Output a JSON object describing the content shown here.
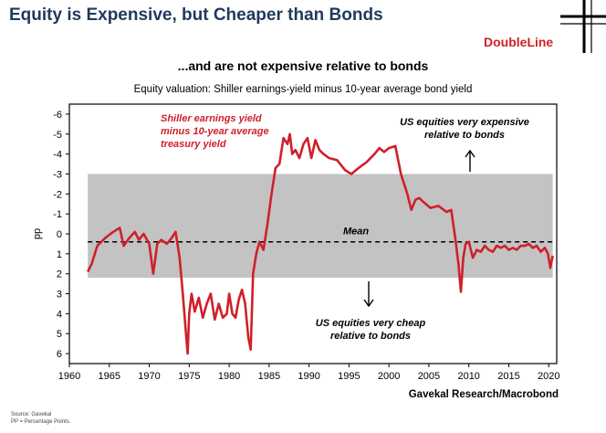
{
  "header": {
    "title": "Equity is Expensive, but Cheaper than Bonds",
    "logo": "DoubleLine"
  },
  "colors": {
    "series": "#d0202a",
    "band": "#c3c3c3",
    "title": "#1f3a5c",
    "logo": "#d0202a"
  },
  "footer": {
    "credit": "Gavekal Research/Macrobond",
    "source": "Source: Gavekal",
    "pp_note": "PP = Percentage Points."
  },
  "chart_data": {
    "type": "line",
    "title": "...and are not expensive relative to bonds",
    "subtitle": "Equity valuation: Shiller earnings-yield minus 10-year average bond yield",
    "ylabel": "pp",
    "xlabel": "",
    "xlim": [
      1960,
      2021
    ],
    "ylim": [
      6.5,
      -6.5
    ],
    "y_inverted": true,
    "xticks": [
      "1960",
      "1965",
      "1970",
      "1975",
      "1980",
      "1985",
      "1990",
      "1995",
      "2000",
      "2005",
      "2010",
      "2015",
      "2020"
    ],
    "yticks": [
      "-6",
      "-5",
      "-4",
      "-3",
      "-2",
      "-1",
      "0",
      "1",
      "2",
      "3",
      "4",
      "5",
      "6"
    ],
    "grid": false,
    "band": {
      "from": -3,
      "to": 2.2
    },
    "mean": 0.4,
    "mean_label": "Mean",
    "annotations": {
      "series_label": [
        "Shiller earnings yield",
        "minus 10-year average",
        "treasury yield"
      ],
      "expensive": [
        "US equities very expensive",
        "relative to bonds"
      ],
      "cheap": [
        "US equities very cheap",
        "relative to bonds"
      ]
    },
    "series": [
      {
        "name": "Shiller earnings yield minus 10-year average treasury yield",
        "x": [
          1962.3,
          1962.8,
          1963.5,
          1964.5,
          1965.5,
          1966.3,
          1966.8,
          1967.5,
          1968.2,
          1968.7,
          1969.3,
          1970.0,
          1970.5,
          1971.0,
          1971.5,
          1972.2,
          1972.8,
          1973.3,
          1973.8,
          1974.2,
          1974.5,
          1974.8,
          1975.0,
          1975.3,
          1975.7,
          1976.2,
          1976.7,
          1977.2,
          1977.7,
          1978.2,
          1978.7,
          1979.2,
          1979.7,
          1980.0,
          1980.4,
          1980.8,
          1981.2,
          1981.6,
          1982.0,
          1982.4,
          1982.7,
          1983.0,
          1983.4,
          1983.8,
          1984.3,
          1984.8,
          1985.3,
          1985.8,
          1986.3,
          1986.8,
          1987.3,
          1987.6,
          1987.9,
          1988.3,
          1988.8,
          1989.3,
          1989.8,
          1990.3,
          1990.8,
          1991.3,
          1991.8,
          1992.5,
          1993.5,
          1994.5,
          1995.3,
          1996.2,
          1997.2,
          1998.2,
          1998.8,
          1999.4,
          2000.0,
          2000.8,
          2001.5,
          2002.3,
          2002.8,
          2003.3,
          2003.8,
          2004.3,
          2005.2,
          2006.2,
          2007.2,
          2007.8,
          2008.3,
          2008.7,
          2009.0,
          2009.3,
          2009.6,
          2010.0,
          2010.5,
          2011.0,
          2011.5,
          2012.0,
          2012.5,
          2013.0,
          2013.5,
          2014.0,
          2014.5,
          2015.0,
          2015.5,
          2016.0,
          2016.5,
          2017.0,
          2017.5,
          2018.0,
          2018.5,
          2019.0,
          2019.5,
          2019.9,
          2020.2,
          2020.5
        ],
        "values": [
          1.9,
          1.5,
          0.6,
          0.2,
          -0.1,
          -0.3,
          0.6,
          0.2,
          -0.1,
          0.3,
          0.0,
          0.5,
          2.0,
          0.5,
          0.3,
          0.5,
          0.2,
          -0.1,
          1.2,
          3.0,
          4.5,
          6.0,
          4.0,
          3.0,
          3.9,
          3.2,
          4.2,
          3.5,
          3.0,
          4.3,
          3.5,
          4.2,
          4.0,
          3.0,
          4.0,
          4.2,
          3.3,
          2.8,
          3.5,
          5.2,
          5.8,
          2.0,
          1.0,
          0.4,
          0.8,
          -0.5,
          -2.0,
          -3.3,
          -3.5,
          -4.8,
          -4.5,
          -5.0,
          -4.0,
          -4.2,
          -3.8,
          -4.5,
          -4.8,
          -3.8,
          -4.7,
          -4.2,
          -4.0,
          -3.8,
          -3.7,
          -3.2,
          -3.0,
          -3.3,
          -3.6,
          -4.0,
          -4.3,
          -4.1,
          -4.3,
          -4.4,
          -3.0,
          -2.0,
          -1.2,
          -1.7,
          -1.8,
          -1.6,
          -1.3,
          -1.4,
          -1.1,
          -1.2,
          0.2,
          1.5,
          2.9,
          1.2,
          0.5,
          0.4,
          1.2,
          0.8,
          0.9,
          0.6,
          0.8,
          0.9,
          0.6,
          0.7,
          0.6,
          0.8,
          0.7,
          0.8,
          0.6,
          0.6,
          0.5,
          0.7,
          0.6,
          0.9,
          0.7,
          1.0,
          1.7,
          1.1
        ]
      }
    ]
  }
}
